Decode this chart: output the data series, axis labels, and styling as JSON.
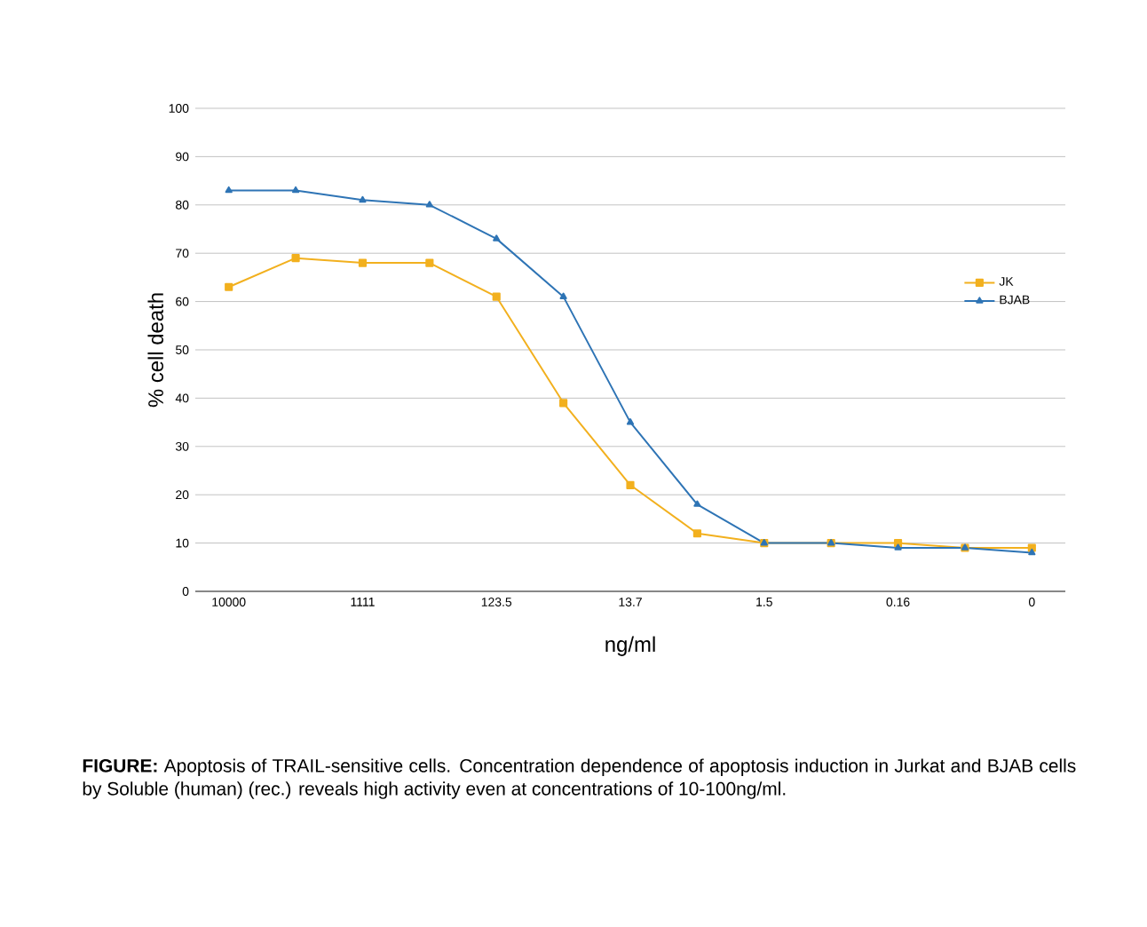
{
  "chart_data": {
    "type": "line",
    "xlabel": "ng/ml",
    "ylabel": "% cell death",
    "categories": [
      "10000",
      null,
      "1111",
      null,
      "123.5",
      null,
      "13.7",
      null,
      "1.5",
      null,
      "0.16",
      null,
      "0"
    ],
    "series": [
      {
        "name": "JK",
        "color": "#f2b01e",
        "marker": "square",
        "values": [
          63,
          69,
          68,
          68,
          61,
          39,
          22,
          12,
          10,
          10,
          10,
          9,
          9
        ]
      },
      {
        "name": "BJAB",
        "color": "#2e74b5",
        "marker": "triangle",
        "values": [
          83,
          83,
          81,
          80,
          73,
          61,
          35,
          18,
          10,
          10,
          9,
          9,
          8
        ]
      }
    ],
    "ylim": [
      0,
      100
    ],
    "yticks": [
      0,
      10,
      20,
      30,
      40,
      50,
      60,
      70,
      80,
      90,
      100
    ],
    "grid": "y",
    "legend": "right",
    "line_style": "solid",
    "annotations": [
      "**FIGURE:** Apoptosis of TRAIL-sensitive cells. Concentration dependence of apoptosis induction in Jurkat and BJAB cells by Soluble (human) (rec.) reveals high activity even at concentrations of 10-100ng/ml."
    ]
  }
}
